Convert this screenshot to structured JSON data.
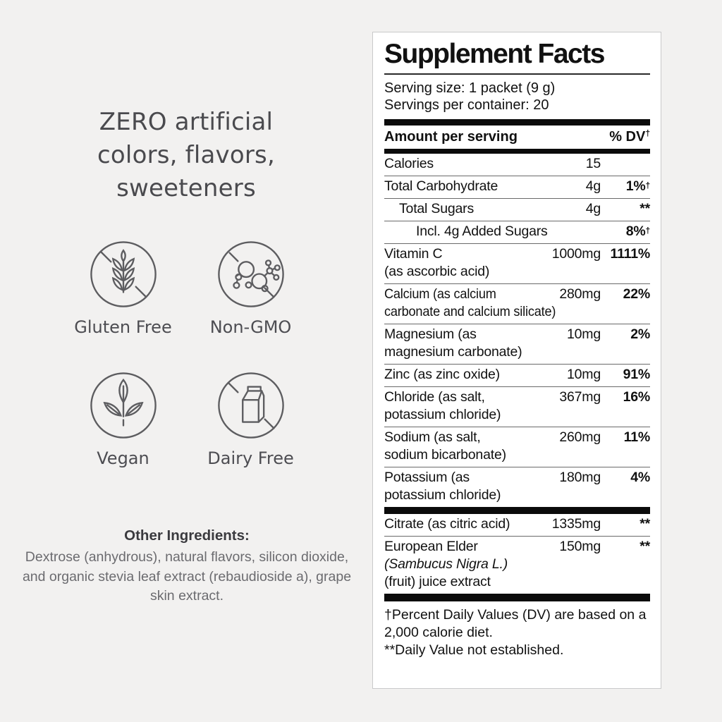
{
  "colors": {
    "page_bg": "#f2f1f0",
    "panel_bg": "#ffffff",
    "panel_border": "#c9c9ca",
    "label_text": "#111111",
    "headline_text": "#4a4a4e",
    "muted_text": "#6b6b6f",
    "icon_stroke": "#5d5d60",
    "bar_black": "#0b0b0b"
  },
  "left": {
    "headline_lines": [
      "ZERO artificial",
      "colors, flavors,",
      "sweeteners"
    ],
    "badges": [
      {
        "icon": "gluten-free-icon",
        "label": "Gluten Free"
      },
      {
        "icon": "non-gmo-icon",
        "label": "Non-GMO"
      },
      {
        "icon": "vegan-icon",
        "label": "Vegan"
      },
      {
        "icon": "dairy-free-icon",
        "label": "Dairy Free"
      }
    ],
    "other_ingredients": {
      "heading": "Other Ingredients:",
      "body": "Dextrose (anhydrous), natural flavors, silicon dioxide, and organic stevia leaf extract (rebaudioside a), grape skin extract."
    }
  },
  "label": {
    "title": "Supplement Facts",
    "serving_size": "Serving size: 1 packet (9 g)",
    "servings_per_container": "Servings per container: 20",
    "amount_header": "Amount per serving",
    "dv_header": "% DV",
    "dv_header_sup": "†",
    "rows_main": [
      {
        "lines": [
          "Calories"
        ],
        "amount": "15"
      },
      {
        "lines": [
          "Total Carbohydrate"
        ],
        "amount": "4g",
        "dv": "1%",
        "dv_sup": "†"
      },
      {
        "indent": 1,
        "lines": [
          "Total Sugars"
        ],
        "amount": "4g",
        "dv": "**"
      },
      {
        "indent": 2,
        "lines": [
          "Incl. 4g Added Sugars"
        ],
        "dv": "8%",
        "dv_sup": "†"
      },
      {
        "lines": [
          "Vitamin C",
          "(as ascorbic acid)"
        ],
        "amount": "1000mg",
        "dv": "1111%"
      },
      {
        "narrow": true,
        "lines": [
          "Calcium (as calcium",
          "carbonate and calcium silicate)"
        ],
        "amount": "280mg",
        "dv": "22%"
      },
      {
        "lines": [
          "Magnesium (as",
          "magnesium carbonate)"
        ],
        "amount": "10mg",
        "dv": "2%"
      },
      {
        "lines": [
          "Zinc (as zinc oxide)"
        ],
        "amount": "10mg",
        "dv": "91%"
      },
      {
        "lines": [
          "Chloride (as salt,",
          "potassium chloride)"
        ],
        "amount": "367mg",
        "dv": "16%"
      },
      {
        "lines": [
          "Sodium (as salt,",
          "sodium bicarbonate)"
        ],
        "amount": "260mg",
        "dv": "11%"
      },
      {
        "lines": [
          "Potassium (as",
          "potassium chloride)"
        ],
        "amount": "180mg",
        "dv": "4%"
      }
    ],
    "rows_other": [
      {
        "lines": [
          "Citrate (as citric acid)"
        ],
        "amount": "1335mg",
        "dv": "**"
      },
      {
        "lines": [
          "European Elder",
          {
            "text": "(Sambucus Nigra L.)",
            "italic": true
          },
          "(fruit) juice extract"
        ],
        "amount": "150mg",
        "dv": "**"
      }
    ],
    "footnotes": [
      "†Percent Daily Values (DV) are based on a 2,000 calorie diet.",
      "**Daily Value not established."
    ]
  }
}
